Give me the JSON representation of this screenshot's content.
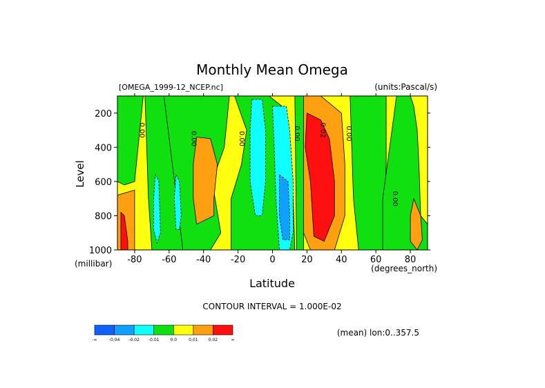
{
  "chart_data": {
    "type": "heatmap",
    "title": "Monthly Mean Omega",
    "subtitle_left": "[OMEGA_1999-12_NCEP.nc]",
    "subtitle_right": "(units:Pascal/s)",
    "xlabel": "Latitude",
    "x_units": "(degrees_north)",
    "ylabel": "Level",
    "y_units": "(millibar)",
    "xlim": [
      -90,
      90
    ],
    "ylim": [
      1000,
      100
    ],
    "x_ticks": [
      "-80",
      "-60",
      "-40",
      "-20",
      "0",
      "20",
      "40",
      "60",
      "80"
    ],
    "x_tick_values": [
      -80,
      -60,
      -40,
      -20,
      0,
      20,
      40,
      60,
      80
    ],
    "y_ticks": [
      "200",
      "400",
      "600",
      "800",
      "1000"
    ],
    "y_tick_values": [
      200,
      400,
      600,
      800,
      1000
    ],
    "contour_interval_text": "CONTOUR INTERVAL = 1.000E-02",
    "mean_note": "(mean) lon:0..357.5",
    "contour_labels": [
      {
        "text": "0.00",
        "lat": -77,
        "level": 300
      },
      {
        "text": "0.00",
        "lat": -47,
        "level": 350
      },
      {
        "text": "0.00",
        "lat": -19,
        "level": 350
      },
      {
        "text": "0.00",
        "lat": 13,
        "level": 320
      },
      {
        "text": "0.02",
        "lat": 28,
        "level": 300
      },
      {
        "text": "0.00",
        "lat": 43,
        "level": 320
      },
      {
        "text": "0.00",
        "lat": 70,
        "level": 700
      }
    ],
    "colorbar": {
      "colors": [
        "#1060ff",
        "#10a0ff",
        "#10ffff",
        "#10e010",
        "#ffff10",
        "#ffa010",
        "#ff1010"
      ],
      "labels": [
        "-∞",
        "-0.04",
        "-0.02",
        "-0.01",
        "0.0",
        "0.01",
        "0.02",
        "∞"
      ]
    },
    "regions": {
      "background": {
        "color": "#ffff10"
      },
      "green": [
        [
          [
            -90,
            100
          ],
          [
            -75,
            100
          ],
          [
            -78,
            400
          ],
          [
            -80,
            600
          ],
          [
            -86,
            620
          ],
          [
            -90,
            600
          ]
        ],
        [
          [
            -74,
            100
          ],
          [
            -55,
            100
          ],
          [
            -54,
            500
          ],
          [
            -50,
            850
          ],
          [
            -49,
            1000
          ],
          [
            -70,
            1000
          ],
          [
            -72,
            700
          ]
        ],
        [
          [
            -63,
            100
          ],
          [
            -38,
            100
          ],
          [
            -25,
            100
          ],
          [
            -28,
            400
          ],
          [
            -35,
            600
          ],
          [
            -30,
            900
          ],
          [
            -36,
            1000
          ],
          [
            -52,
            1000
          ]
        ],
        [
          [
            -22,
            100
          ],
          [
            -2,
            100
          ],
          [
            8,
            180
          ],
          [
            10,
            400
          ],
          [
            12,
            700
          ],
          [
            13,
            1000
          ],
          [
            5,
            1000
          ],
          [
            -10,
            1000
          ],
          [
            -24,
            1000
          ],
          [
            -24,
            700
          ],
          [
            -18,
            500
          ],
          [
            -15,
            300
          ]
        ],
        [
          [
            13,
            100
          ],
          [
            18,
            100
          ],
          [
            18,
            1000
          ],
          [
            14,
            1000
          ]
        ],
        [
          [
            45,
            100
          ],
          [
            56,
            100
          ],
          [
            66,
            100
          ],
          [
            66,
            500
          ],
          [
            64,
            1000
          ],
          [
            50,
            1000
          ],
          [
            47,
            700
          ]
        ],
        [
          [
            72,
            100
          ],
          [
            80,
            100
          ],
          [
            82,
            160
          ],
          [
            84,
            300
          ],
          [
            85,
            500
          ],
          [
            86,
            800
          ],
          [
            90,
            850
          ],
          [
            90,
            1000
          ],
          [
            64,
            1000
          ],
          [
            64,
            700
          ],
          [
            68,
            400
          ]
        ]
      ],
      "orange": [
        [
          [
            -90,
            680
          ],
          [
            -80,
            650
          ],
          [
            -80,
            1000
          ],
          [
            -90,
            1000
          ]
        ],
        [
          [
            -44,
            340
          ],
          [
            -36,
            350
          ],
          [
            -32,
            500
          ],
          [
            -34,
            700
          ],
          [
            -34,
            800
          ],
          [
            -44,
            850
          ],
          [
            -46,
            700
          ],
          [
            -46,
            500
          ]
        ],
        [
          [
            18,
            100
          ],
          [
            28,
            100
          ],
          [
            40,
            200
          ],
          [
            42,
            500
          ],
          [
            42,
            800
          ],
          [
            36,
            1000
          ],
          [
            22,
            1000
          ],
          [
            18,
            900
          ],
          [
            18,
            300
          ]
        ],
        [
          [
            82,
            700
          ],
          [
            86,
            800
          ],
          [
            87,
            940
          ],
          [
            84,
            1000
          ],
          [
            80,
            950
          ],
          [
            80,
            800
          ]
        ]
      ],
      "red": [
        [
          [
            -88,
            780
          ],
          [
            -86,
            800
          ],
          [
            -84,
            950
          ],
          [
            -84,
            1000
          ],
          [
            -88,
            1000
          ]
        ],
        [
          [
            20,
            200
          ],
          [
            28,
            240
          ],
          [
            33,
            350
          ],
          [
            36,
            600
          ],
          [
            36,
            800
          ],
          [
            30,
            950
          ],
          [
            24,
            920
          ],
          [
            22,
            600
          ],
          [
            19,
            400
          ]
        ]
      ],
      "cyan": [
        [
          [
            -68,
            560
          ],
          [
            -66,
            600
          ],
          [
            -65,
            900
          ],
          [
            -67,
            960
          ],
          [
            -69,
            880
          ],
          [
            -69,
            700
          ]
        ],
        [
          [
            -56,
            560
          ],
          [
            -54,
            600
          ],
          [
            -53,
            800
          ],
          [
            -54,
            880
          ],
          [
            -56,
            880
          ],
          [
            -57,
            700
          ]
        ],
        [
          [
            -12,
            120
          ],
          [
            -6,
            120
          ],
          [
            -4,
            300
          ],
          [
            -4,
            600
          ],
          [
            -6,
            800
          ],
          [
            -10,
            800
          ],
          [
            -13,
            600
          ],
          [
            -13,
            300
          ]
        ],
        [
          [
            0,
            160
          ],
          [
            8,
            160
          ],
          [
            10,
            300
          ],
          [
            12,
            600
          ],
          [
            12,
            900
          ],
          [
            10,
            1000
          ],
          [
            4,
            1000
          ],
          [
            2,
            700
          ],
          [
            1,
            400
          ]
        ]
      ],
      "blue": [
        [
          [
            4,
            560
          ],
          [
            9,
            600
          ],
          [
            10,
            800
          ],
          [
            10,
            940
          ],
          [
            6,
            940
          ],
          [
            4,
            800
          ]
        ]
      ]
    }
  }
}
